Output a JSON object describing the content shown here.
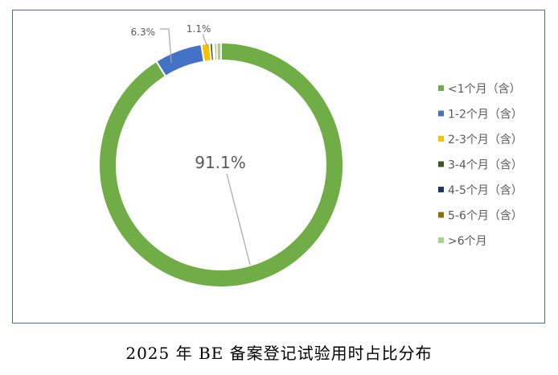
{
  "caption": "2025 年 BE 备案登记试验用时占比分布",
  "chart_data": {
    "type": "pie",
    "subtype": "donut",
    "title": "",
    "legend_position": "right",
    "categories": [
      "<1个月（含）",
      "1-2个月（含）",
      "2-3个月（含）",
      "3-4个月（含）",
      "4-5个月（含）",
      "5-6个月（含）",
      ">6个月"
    ],
    "values": [
      91.1,
      6.3,
      1.1,
      0.4,
      0.2,
      0.3,
      0.6
    ],
    "colors": [
      "#70ad47",
      "#4472c4",
      "#ffc000",
      "#375623",
      "#1f3864",
      "#8b6d0a",
      "#a9d18e"
    ],
    "data_labels": [
      {
        "category": "<1个月（含）",
        "text": "91.1%"
      },
      {
        "category": "1-2个月（含）",
        "text": "6.3%"
      },
      {
        "category": "2-3个月（含）",
        "text": "1.1%"
      }
    ]
  }
}
